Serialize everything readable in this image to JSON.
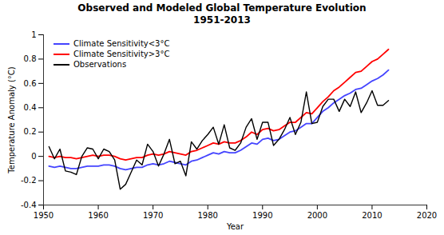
{
  "chart_data": {
    "type": "line",
    "title": "Observed and Modeled Global Temperature Evolution",
    "subtitle": "1951-2013",
    "xlabel": "Year",
    "ylabel": "Temperature Anomaly (°C)",
    "xlim": [
      1950,
      2020
    ],
    "ylim": [
      -0.4,
      1.0
    ],
    "xticks": [
      1950,
      1960,
      1970,
      1980,
      1990,
      2000,
      2010,
      2020
    ],
    "yticks": [
      -0.4,
      -0.2,
      0.0,
      0.2,
      0.4,
      0.6,
      0.8,
      1.0
    ],
    "legend": "upper left",
    "grid": false,
    "x": [
      1951,
      1952,
      1953,
      1954,
      1955,
      1956,
      1957,
      1958,
      1959,
      1960,
      1961,
      1962,
      1963,
      1964,
      1965,
      1966,
      1967,
      1968,
      1969,
      1970,
      1971,
      1972,
      1973,
      1974,
      1975,
      1976,
      1977,
      1978,
      1979,
      1980,
      1981,
      1982,
      1983,
      1984,
      1985,
      1986,
      1987,
      1988,
      1989,
      1990,
      1991,
      1992,
      1993,
      1994,
      1995,
      1996,
      1997,
      1998,
      1999,
      2000,
      2001,
      2002,
      2003,
      2004,
      2005,
      2006,
      2007,
      2008,
      2009,
      2010,
      2011,
      2012,
      2013
    ],
    "series": [
      {
        "name": "Climate Sensitivity<3°C",
        "color": "#4444ff",
        "values": [
          -0.08,
          -0.09,
          -0.08,
          -0.09,
          -0.1,
          -0.1,
          -0.09,
          -0.08,
          -0.08,
          -0.08,
          -0.07,
          -0.07,
          -0.08,
          -0.1,
          -0.11,
          -0.1,
          -0.09,
          -0.09,
          -0.07,
          -0.06,
          -0.07,
          -0.06,
          -0.04,
          -0.05,
          -0.06,
          -0.07,
          -0.04,
          -0.03,
          -0.01,
          0.01,
          0.03,
          0.02,
          0.04,
          0.03,
          0.03,
          0.05,
          0.08,
          0.11,
          0.1,
          0.14,
          0.15,
          0.13,
          0.14,
          0.17,
          0.2,
          0.21,
          0.24,
          0.27,
          0.27,
          0.32,
          0.37,
          0.4,
          0.44,
          0.47,
          0.5,
          0.52,
          0.55,
          0.56,
          0.59,
          0.62,
          0.64,
          0.67,
          0.71
        ]
      },
      {
        "name": "Climate Sensitivity>3°C",
        "color": "#ff0000",
        "values": [
          0.0,
          -0.01,
          0.0,
          -0.01,
          -0.01,
          -0.02,
          -0.01,
          0.0,
          0.01,
          0.0,
          0.01,
          0.01,
          0.0,
          -0.02,
          -0.03,
          -0.02,
          -0.01,
          -0.01,
          0.01,
          0.02,
          0.01,
          0.02,
          0.04,
          0.03,
          0.02,
          0.01,
          0.04,
          0.05,
          0.07,
          0.09,
          0.11,
          0.1,
          0.12,
          0.11,
          0.11,
          0.13,
          0.16,
          0.2,
          0.18,
          0.22,
          0.23,
          0.21,
          0.22,
          0.25,
          0.28,
          0.28,
          0.32,
          0.36,
          0.35,
          0.4,
          0.45,
          0.49,
          0.54,
          0.57,
          0.61,
          0.65,
          0.69,
          0.7,
          0.74,
          0.78,
          0.8,
          0.84,
          0.88
        ]
      },
      {
        "name": "Observations",
        "color": "#000000",
        "values": [
          0.08,
          -0.02,
          0.06,
          -0.12,
          -0.13,
          -0.15,
          0.0,
          0.07,
          0.06,
          -0.02,
          0.06,
          0.04,
          -0.03,
          -0.27,
          -0.23,
          -0.13,
          -0.03,
          -0.07,
          0.1,
          0.04,
          -0.08,
          0.02,
          0.14,
          -0.06,
          -0.04,
          -0.16,
          0.12,
          0.06,
          0.13,
          0.18,
          0.24,
          0.1,
          0.26,
          0.07,
          0.05,
          0.11,
          0.24,
          0.31,
          0.14,
          0.28,
          0.28,
          0.09,
          0.14,
          0.22,
          0.32,
          0.18,
          0.28,
          0.53,
          0.27,
          0.28,
          0.41,
          0.47,
          0.47,
          0.37,
          0.47,
          0.41,
          0.53,
          0.36,
          0.44,
          0.54,
          0.42,
          0.42,
          0.46
        ]
      }
    ]
  }
}
